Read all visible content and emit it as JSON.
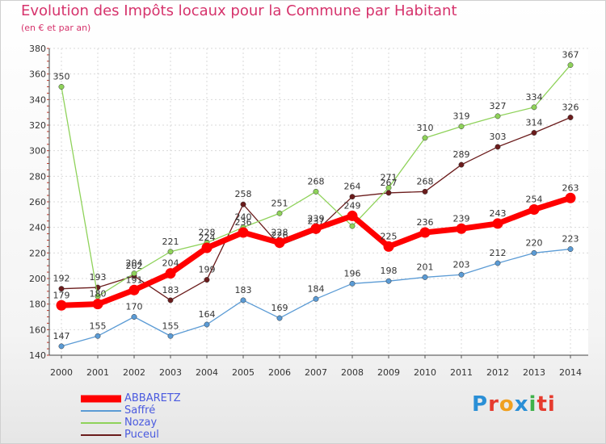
{
  "header": {
    "title": "Evolution des Impôts locaux pour la Commune par Habitant",
    "subtitle": "(en € et par an)"
  },
  "logo": {
    "text": "Proxiti",
    "letters": [
      "P",
      "r",
      "o",
      "x",
      "i",
      "ti"
    ]
  },
  "chart_data": {
    "type": "line",
    "categories": [
      "2000",
      "2001",
      "2002",
      "2003",
      "2004",
      "2005",
      "2006",
      "2007",
      "2008",
      "2009",
      "2010",
      "2011",
      "2012",
      "2013",
      "2014"
    ],
    "ylim": [
      140,
      380
    ],
    "yticks": [
      140,
      160,
      180,
      200,
      220,
      240,
      260,
      280,
      300,
      320,
      340,
      360,
      380
    ],
    "grid": true,
    "legend_position": "bottom-left",
    "series": [
      {
        "name": "Puceul",
        "color": "#6b1c1c",
        "width": 1.3,
        "values": [
          192,
          193,
          202,
          183,
          199,
          258,
          226,
          237,
          264,
          267,
          268,
          289,
          303,
          314,
          326
        ],
        "labels": [
          "192",
          "193",
          "202",
          "183",
          "199",
          "258",
          "226",
          "237",
          "264",
          "267",
          "268",
          "289",
          "303",
          "314",
          "326"
        ]
      },
      {
        "name": "Nozay",
        "color": "#8fd25a",
        "width": 1.3,
        "values": [
          350,
          186,
          204,
          221,
          228,
          240,
          251,
          268,
          241,
          271,
          310,
          319,
          327,
          334,
          367
        ],
        "labels": [
          "350",
          "",
          "204",
          "221",
          "228",
          "240",
          "251",
          "268",
          "",
          "271",
          "310",
          "319",
          "327",
          "334",
          "367"
        ]
      },
      {
        "name": "Saffré",
        "color": "#5b9bd5",
        "width": 1.3,
        "values": [
          147,
          155,
          170,
          155,
          164,
          183,
          169,
          184,
          196,
          198,
          201,
          203,
          212,
          220,
          223
        ],
        "labels": [
          "147",
          "155",
          "170",
          "155",
          "164",
          "183",
          "169",
          "184",
          "196",
          "198",
          "201",
          "203",
          "212",
          "220",
          "223"
        ]
      },
      {
        "name": "ABBARETZ",
        "color": "#ff0000",
        "width": 7,
        "values": [
          179,
          180,
          191,
          204,
          224,
          236,
          228,
          239,
          249,
          225,
          236,
          239,
          243,
          254,
          263
        ],
        "labels": [
          "179",
          "180",
          "191",
          "204",
          "224",
          "236",
          "228",
          "239",
          "249",
          "225",
          "236",
          "239",
          "243",
          "254",
          "263"
        ]
      }
    ]
  }
}
